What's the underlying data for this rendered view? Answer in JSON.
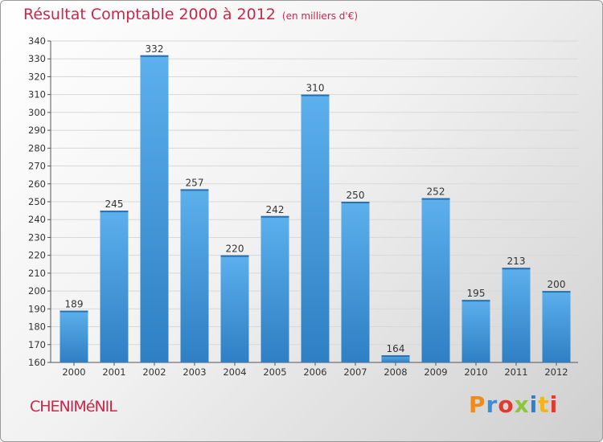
{
  "header": {
    "title": "Résultat Comptable 2000 à 2012",
    "unit": "(en milliers d'€)"
  },
  "footer": {
    "commune": "CHENIMéNIL",
    "logo": "Proxiti",
    "logo_colors": [
      "#f08a1c",
      "#3a8fd8",
      "#e23a2e",
      "#8cc63f",
      "#2f7fd0",
      "#f2b51c",
      "#e23a2e"
    ]
  },
  "colors": {
    "bar": "#4a9ee0",
    "bar_light": "#5cb0ec",
    "bar_dark": "#2e7fc4",
    "accent": "#c8284a",
    "grid": "#d8d8d8",
    "axis": "#555555"
  },
  "chart_data": {
    "type": "bar",
    "title": "Résultat Comptable 2000 à 2012",
    "xlabel": "",
    "ylabel": "",
    "categories": [
      "2000",
      "2001",
      "2002",
      "2003",
      "2004",
      "2005",
      "2006",
      "2007",
      "2008",
      "2009",
      "2010",
      "2011",
      "2012"
    ],
    "values": [
      189,
      245,
      332,
      257,
      220,
      242,
      310,
      250,
      164,
      252,
      195,
      213,
      200
    ],
    "ylim": [
      160,
      340
    ],
    "yticks": [
      160,
      170,
      180,
      190,
      200,
      210,
      220,
      230,
      240,
      250,
      260,
      270,
      280,
      290,
      300,
      310,
      320,
      330,
      340
    ],
    "grid": true
  }
}
